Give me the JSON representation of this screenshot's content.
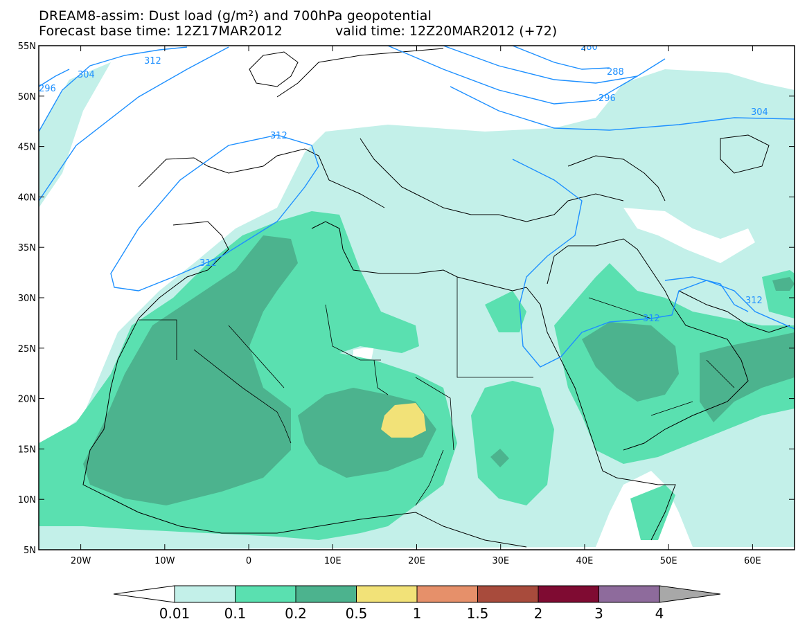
{
  "title": {
    "line1": "DREAM8-assim: Dust load (g/m²) and 700hPa geopotential",
    "line2": "Forecast base time: 12Z17MAR2012",
    "line2b": "valid time: 12Z20MAR2012 (+72)"
  },
  "axes": {
    "lat_labels": [
      "55N",
      "50N",
      "45N",
      "40N",
      "35N",
      "30N",
      "25N",
      "20N",
      "15N",
      "10N",
      "5N"
    ],
    "lon_labels": [
      "20W",
      "10W",
      "0",
      "10E",
      "20E",
      "30E",
      "40E",
      "50E",
      "60E"
    ]
  },
  "contours": {
    "labels": [
      "296",
      "304",
      "312",
      "312",
      "312",
      "312",
      "280",
      "288",
      "296",
      "304"
    ]
  },
  "colorbar": {
    "labels": [
      "0.01",
      "0.1",
      "0.2",
      "0.5",
      "1",
      "1.5",
      "2",
      "3",
      "4"
    ],
    "colors": [
      "#c3f0e9",
      "#5ae0b0",
      "#4cb38e",
      "#f2e278",
      "#e6906a",
      "#a84b3c",
      "#7f0b32",
      "#8e6b9c"
    ],
    "under_color": "#ffffff",
    "over_color": "#a8a8a8"
  },
  "palette": {
    "land_lines": "#000000",
    "contour_line": "#1e90ff"
  }
}
